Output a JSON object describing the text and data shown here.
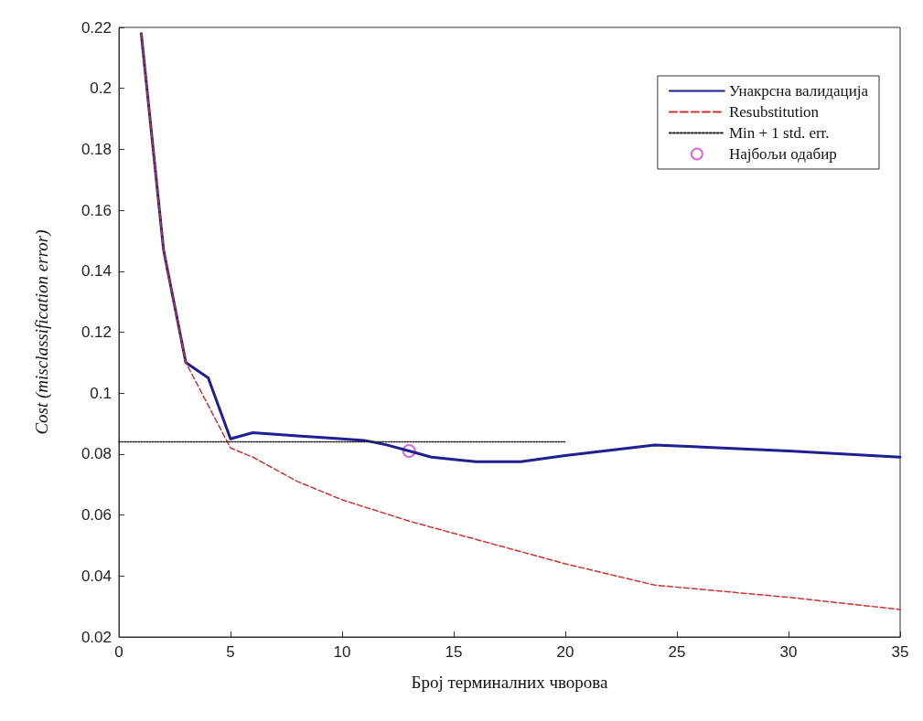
{
  "chart_data": {
    "type": "line",
    "xlabel": "Број терминалних чворова",
    "ylabel": "Cost (misclassification error)",
    "xlim": [
      0,
      35
    ],
    "xticks": [
      0,
      5,
      10,
      15,
      20,
      25,
      30,
      35
    ],
    "ylim": [
      0.02,
      0.22
    ],
    "yticks": [
      0.02,
      0.04,
      0.06,
      0.08,
      0.1,
      0.12,
      0.14,
      0.16,
      0.18,
      0.2,
      0.22
    ],
    "grid": false,
    "legend": "top right",
    "series": [
      {
        "name": "Унакрсна валидација",
        "color": "#1f1f8f",
        "line_style": "solid",
        "marker": "none",
        "x": [
          1,
          2,
          3,
          4,
          5,
          6,
          8,
          10,
          11,
          12,
          13,
          14,
          16,
          18,
          20,
          24,
          30,
          35
        ],
        "values": [
          0.218,
          0.147,
          0.11,
          0.105,
          0.085,
          0.087,
          0.086,
          0.085,
          0.0845,
          0.083,
          0.081,
          0.079,
          0.0775,
          0.0775,
          0.0795,
          0.083,
          0.081,
          0.079
        ]
      },
      {
        "name": "Resubstitution",
        "color": "#cc3333",
        "line_style": "dashed",
        "marker": "none",
        "x": [
          1,
          2,
          3,
          4,
          5,
          6,
          8,
          10,
          13,
          16,
          20,
          24,
          30,
          35
        ],
        "values": [
          0.218,
          0.147,
          0.11,
          0.096,
          0.082,
          0.079,
          0.071,
          0.065,
          0.058,
          0.052,
          0.044,
          0.037,
          0.033,
          0.029
        ]
      },
      {
        "name": "Min + 1 std. err.",
        "color": "#222222",
        "line_style": "dotted",
        "marker": "none",
        "x": [
          0,
          20
        ],
        "values": [
          0.084,
          0.084
        ]
      },
      {
        "name": "Најбољи одабир",
        "type": "scatter",
        "color": "#cc44cc",
        "marker": "circle",
        "x": [
          13
        ],
        "values": [
          0.081
        ]
      }
    ]
  }
}
